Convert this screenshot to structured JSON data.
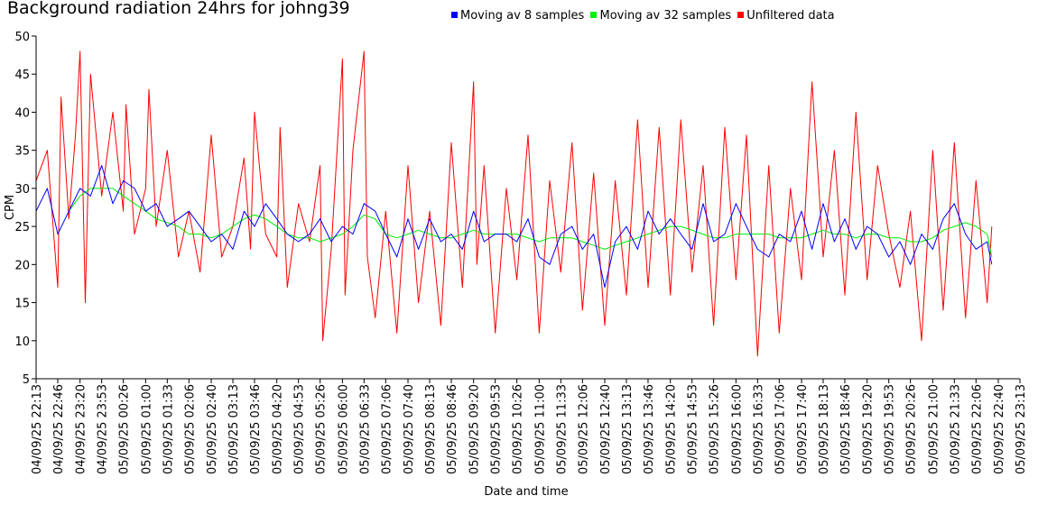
{
  "chart_data": {
    "type": "line",
    "title": "Background radiation 24hrs for johng39",
    "xlabel": "Date and time",
    "ylabel": "CPM",
    "ylim": [
      5,
      50
    ],
    "yticks": [
      5,
      10,
      15,
      20,
      25,
      30,
      35,
      40,
      45,
      50
    ],
    "xlim": [
      "04/09/25 22:13",
      "05/09/25 23:13"
    ],
    "xticks": [
      "04/09/25 22:13",
      "04/09/25 22:46",
      "04/09/25 23:20",
      "04/09/25 23:53",
      "05/09/25 00:26",
      "05/09/25 01:00",
      "05/09/25 01:33",
      "05/09/25 02:06",
      "05/09/25 02:40",
      "05/09/25 03:13",
      "05/09/25 03:46",
      "05/09/25 04:20",
      "05/09/25 04:53",
      "05/09/25 05:26",
      "05/09/25 06:00",
      "05/09/25 06:33",
      "05/09/25 07:06",
      "05/09/25 07:40",
      "05/09/25 08:13",
      "05/09/25 08:46",
      "05/09/25 09:20",
      "05/09/25 09:53",
      "05/09/25 10:26",
      "05/09/25 11:00",
      "05/09/25 11:33",
      "05/09/25 12:06",
      "05/09/25 12:40",
      "05/09/25 13:13",
      "05/09/25 13:46",
      "05/09/25 14:20",
      "05/09/25 14:53",
      "05/09/25 15:26",
      "05/09/25 16:00",
      "05/09/25 16:33",
      "05/09/25 17:06",
      "05/09/25 17:40",
      "05/09/25 18:13",
      "05/09/25 18:46",
      "05/09/25 19:20",
      "05/09/25 19:53",
      "05/09/25 20:26",
      "05/09/25 21:00",
      "05/09/25 21:33",
      "05/09/25 22:06",
      "05/09/25 22:40",
      "05/09/25 23:13"
    ],
    "grid": false,
    "legend_position": "top",
    "series": [
      {
        "name": "Moving av 8 samples",
        "color": "#0000ff",
        "x": [
          "04/09/25 22:13",
          "04/09/25 22:30",
          "04/09/25 22:46",
          "04/09/25 23:03",
          "04/09/25 23:20",
          "04/09/25 23:36",
          "04/09/25 23:53",
          "05/09/25 00:10",
          "05/09/25 00:26",
          "05/09/25 00:43",
          "05/09/25 01:00",
          "05/09/25 01:16",
          "05/09/25 01:33",
          "05/09/25 01:50",
          "05/09/25 02:06",
          "05/09/25 02:23",
          "05/09/25 02:40",
          "05/09/25 02:56",
          "05/09/25 03:13",
          "05/09/25 03:30",
          "05/09/25 03:46",
          "05/09/25 04:03",
          "05/09/25 04:20",
          "05/09/25 04:36",
          "05/09/25 04:53",
          "05/09/25 05:10",
          "05/09/25 05:26",
          "05/09/25 05:43",
          "05/09/25 06:00",
          "05/09/25 06:16",
          "05/09/25 06:33",
          "05/09/25 06:50",
          "05/09/25 07:06",
          "05/09/25 07:23",
          "05/09/25 07:40",
          "05/09/25 07:56",
          "05/09/25 08:13",
          "05/09/25 08:30",
          "05/09/25 08:46",
          "05/09/25 09:03",
          "05/09/25 09:20",
          "05/09/25 09:36",
          "05/09/25 09:53",
          "05/09/25 10:10",
          "05/09/25 10:26",
          "05/09/25 10:43",
          "05/09/25 11:00",
          "05/09/25 11:16",
          "05/09/25 11:33",
          "05/09/25 11:50",
          "05/09/25 12:06",
          "05/09/25 12:23",
          "05/09/25 12:40",
          "05/09/25 12:56",
          "05/09/25 13:13",
          "05/09/25 13:30",
          "05/09/25 13:46",
          "05/09/25 14:03",
          "05/09/25 14:20",
          "05/09/25 14:36",
          "05/09/25 14:53",
          "05/09/25 15:10",
          "05/09/25 15:26",
          "05/09/25 15:43",
          "05/09/25 16:00",
          "05/09/25 16:16",
          "05/09/25 16:33",
          "05/09/25 16:50",
          "05/09/25 17:06",
          "05/09/25 17:23",
          "05/09/25 17:40",
          "05/09/25 17:56",
          "05/09/25 18:13",
          "05/09/25 18:30",
          "05/09/25 18:46",
          "05/09/25 19:03",
          "05/09/25 19:20",
          "05/09/25 19:36",
          "05/09/25 19:53",
          "05/09/25 20:10",
          "05/09/25 20:26",
          "05/09/25 20:43",
          "05/09/25 21:00",
          "05/09/25 21:16",
          "05/09/25 21:33",
          "05/09/25 21:50",
          "05/09/25 22:06",
          "05/09/25 22:23",
          "05/09/25 22:30"
        ],
        "y": [
          27,
          30,
          24,
          27,
          30,
          29,
          33,
          28,
          31,
          30,
          27,
          28,
          25,
          26,
          27,
          25,
          23,
          24,
          22,
          27,
          25,
          28,
          26,
          24,
          23,
          24,
          26,
          23,
          25,
          24,
          28,
          27,
          24,
          21,
          26,
          22,
          26,
          23,
          24,
          22,
          27,
          23,
          24,
          24,
          23,
          26,
          21,
          20,
          24,
          25,
          22,
          24,
          17,
          23,
          25,
          22,
          27,
          24,
          26,
          24,
          22,
          28,
          23,
          24,
          28,
          25,
          22,
          21,
          24,
          23,
          27,
          22,
          28,
          23,
          26,
          22,
          25,
          24,
          21,
          23,
          20,
          24,
          22,
          26,
          28,
          24,
          22,
          23,
          20
        ]
      },
      {
        "name": "Moving av 32 samples",
        "color": "#00ee00",
        "x": [
          "04/09/25 23:03",
          "04/09/25 23:20",
          "04/09/25 23:36",
          "04/09/25 23:53",
          "05/09/25 00:10",
          "05/09/25 00:26",
          "05/09/25 00:43",
          "05/09/25 01:00",
          "05/09/25 01:16",
          "05/09/25 01:33",
          "05/09/25 01:50",
          "05/09/25 02:06",
          "05/09/25 02:23",
          "05/09/25 02:40",
          "05/09/25 02:56",
          "05/09/25 03:13",
          "05/09/25 03:30",
          "05/09/25 03:46",
          "05/09/25 04:03",
          "05/09/25 04:20",
          "05/09/25 04:36",
          "05/09/25 04:53",
          "05/09/25 05:10",
          "05/09/25 05:26",
          "05/09/25 05:43",
          "05/09/25 06:00",
          "05/09/25 06:16",
          "05/09/25 06:33",
          "05/09/25 06:50",
          "05/09/25 07:06",
          "05/09/25 07:23",
          "05/09/25 07:40",
          "05/09/25 07:56",
          "05/09/25 08:13",
          "05/09/25 08:30",
          "05/09/25 08:46",
          "05/09/25 09:03",
          "05/09/25 09:20",
          "05/09/25 09:36",
          "05/09/25 09:53",
          "05/09/25 10:10",
          "05/09/25 10:26",
          "05/09/25 10:43",
          "05/09/25 11:00",
          "05/09/25 11:16",
          "05/09/25 11:33",
          "05/09/25 11:50",
          "05/09/25 12:06",
          "05/09/25 12:23",
          "05/09/25 12:40",
          "05/09/25 12:56",
          "05/09/25 13:13",
          "05/09/25 13:30",
          "05/09/25 13:46",
          "05/09/25 14:03",
          "05/09/25 14:20",
          "05/09/25 14:36",
          "05/09/25 14:53",
          "05/09/25 15:10",
          "05/09/25 15:26",
          "05/09/25 15:43",
          "05/09/25 16:00",
          "05/09/25 16:16",
          "05/09/25 16:33",
          "05/09/25 16:50",
          "05/09/25 17:06",
          "05/09/25 17:23",
          "05/09/25 17:40",
          "05/09/25 17:56",
          "05/09/25 18:13",
          "05/09/25 18:30",
          "05/09/25 18:46",
          "05/09/25 19:03",
          "05/09/25 19:20",
          "05/09/25 19:36",
          "05/09/25 19:53",
          "05/09/25 20:10",
          "05/09/25 20:26",
          "05/09/25 20:43",
          "05/09/25 21:00",
          "05/09/25 21:16",
          "05/09/25 21:33",
          "05/09/25 21:50",
          "05/09/25 22:06",
          "05/09/25 22:23",
          "05/09/25 22:30"
        ],
        "y": [
          27,
          29,
          30,
          30,
          30,
          29,
          28,
          27,
          26,
          25.5,
          25,
          24,
          24,
          23.5,
          24,
          25,
          26,
          26.5,
          26,
          25,
          24,
          23.5,
          23.5,
          23,
          23.5,
          24,
          25,
          26.5,
          26,
          24,
          23.5,
          24,
          24.5,
          24,
          23.5,
          23.5,
          24,
          24.5,
          24,
          24,
          24,
          24,
          23.5,
          23,
          23.5,
          23.5,
          23.5,
          23,
          22.5,
          22,
          22.5,
          23,
          23.5,
          24,
          24.5,
          25,
          25,
          24.5,
          24,
          23.5,
          23.5,
          24,
          24,
          24,
          24,
          23.5,
          23.5,
          23.5,
          24,
          24.5,
          24,
          24,
          23.5,
          24,
          24,
          23.5,
          23.5,
          23,
          23,
          23.5,
          24.5,
          25,
          25.5,
          25,
          24,
          21
        ]
      },
      {
        "name": "Unfiltered data",
        "color": "#ff0000",
        "x": [
          "04/09/25 22:13",
          "04/09/25 22:30",
          "04/09/25 22:46",
          "04/09/25 22:51",
          "04/09/25 23:03",
          "04/09/25 23:13",
          "04/09/25 23:20",
          "04/09/25 23:28",
          "04/09/25 23:36",
          "04/09/25 23:53",
          "05/09/25 00:10",
          "05/09/25 00:26",
          "05/09/25 00:30",
          "05/09/25 00:43",
          "05/09/25 01:00",
          "05/09/25 01:05",
          "05/09/25 01:16",
          "05/09/25 01:33",
          "05/09/25 01:50",
          "05/09/25 02:06",
          "05/09/25 02:23",
          "05/09/25 02:40",
          "05/09/25 02:56",
          "05/09/25 03:13",
          "05/09/25 03:30",
          "05/09/25 03:40",
          "05/09/25 03:46",
          "05/09/25 04:03",
          "05/09/25 04:20",
          "05/09/25 04:25",
          "05/09/25 04:36",
          "05/09/25 04:53",
          "05/09/25 05:10",
          "05/09/25 05:26",
          "05/09/25 05:30",
          "05/09/25 05:43",
          "05/09/25 06:00",
          "05/09/25 06:04",
          "05/09/25 06:16",
          "05/09/25 06:33",
          "05/09/25 06:38",
          "05/09/25 06:50",
          "05/09/25 07:06",
          "05/09/25 07:23",
          "05/09/25 07:40",
          "05/09/25 07:56",
          "05/09/25 08:13",
          "05/09/25 08:30",
          "05/09/25 08:46",
          "05/09/25 09:03",
          "05/09/25 09:20",
          "05/09/25 09:25",
          "05/09/25 09:36",
          "05/09/25 09:53",
          "05/09/25 10:10",
          "05/09/25 10:26",
          "05/09/25 10:43",
          "05/09/25 11:00",
          "05/09/25 11:16",
          "05/09/25 11:33",
          "05/09/25 11:50",
          "05/09/25 12:06",
          "05/09/25 12:23",
          "05/09/25 12:40",
          "05/09/25 12:56",
          "05/09/25 13:13",
          "05/09/25 13:30",
          "05/09/25 13:46",
          "05/09/25 14:03",
          "05/09/25 14:20",
          "05/09/25 14:36",
          "05/09/25 14:53",
          "05/09/25 15:10",
          "05/09/25 15:26",
          "05/09/25 15:43",
          "05/09/25 16:00",
          "05/09/25 16:16",
          "05/09/25 16:33",
          "05/09/25 16:50",
          "05/09/25 17:06",
          "05/09/25 17:23",
          "05/09/25 17:40",
          "05/09/25 17:56",
          "05/09/25 18:05",
          "05/09/25 18:13",
          "05/09/25 18:30",
          "05/09/25 18:46",
          "05/09/25 19:03",
          "05/09/25 19:20",
          "05/09/25 19:36",
          "05/09/25 19:53",
          "05/09/25 20:10",
          "05/09/25 20:26",
          "05/09/25 20:43",
          "05/09/25 21:00",
          "05/09/25 21:16",
          "05/09/25 21:33",
          "05/09/25 21:50",
          "05/09/25 22:06",
          "05/09/25 22:23",
          "05/09/25 22:30"
        ],
        "y": [
          31,
          35,
          17,
          42,
          26,
          37,
          48,
          15,
          45,
          29,
          40,
          27,
          41,
          24,
          30,
          43,
          25,
          35,
          21,
          27,
          19,
          37,
          21,
          25,
          34,
          22,
          40,
          24,
          21,
          38,
          17,
          28,
          23,
          33,
          10,
          22,
          47,
          16,
          35,
          48,
          21,
          13,
          27,
          11,
          33,
          15,
          27,
          12,
          36,
          17,
          44,
          20,
          33,
          11,
          30,
          18,
          37,
          11,
          31,
          19,
          36,
          14,
          32,
          12,
          31,
          16,
          39,
          17,
          38,
          16,
          39,
          19,
          33,
          12,
          38,
          18,
          37,
          8,
          33,
          11,
          30,
          18,
          44,
          32,
          21,
          35,
          16,
          40,
          18,
          33,
          24,
          17,
          27,
          10,
          35,
          14,
          36,
          13,
          31,
          15,
          25
        ]
      }
    ]
  }
}
